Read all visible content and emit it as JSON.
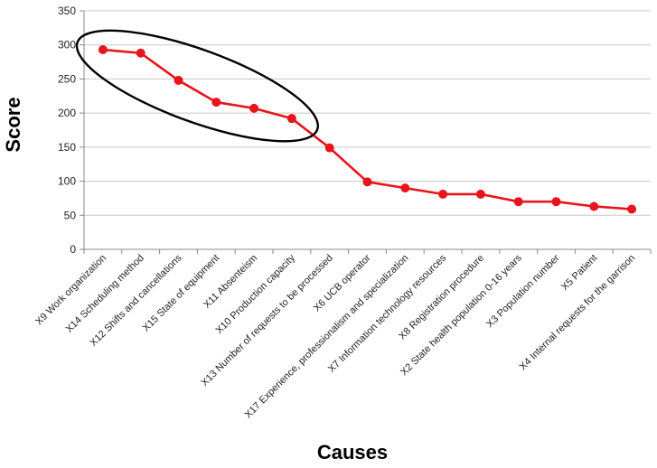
{
  "chart_data": {
    "type": "line",
    "title": "",
    "xlabel": "Causes",
    "ylabel": "Score",
    "ylim": [
      0,
      350
    ],
    "yticks": [
      0,
      50,
      100,
      150,
      200,
      250,
      300,
      350
    ],
    "grid": "horizontal",
    "categories": [
      "X9 Work organization",
      "X14 Scheduling method",
      "X12 Shifts and cancellations",
      "X15 State of equipment",
      "X11 Absenteism",
      "X10 Production capacity",
      "X13 Number of requests to be processed",
      "X6 UCB operator",
      "X17 Experience, professionalism and specialization",
      "X7 Information technology resources",
      "X8 Registration procedure",
      "X2 State health population 0-16 years",
      "X3 Population number",
      "X5 Patient",
      "X4 Internal requests for the garrison"
    ],
    "series": [
      {
        "name": "Score",
        "color": "#e8141b",
        "values": [
          293,
          288,
          248,
          216,
          207,
          192,
          149,
          99,
          90,
          81,
          81,
          70,
          70,
          63,
          59
        ]
      }
    ],
    "annotation": {
      "type": "ellipse",
      "description": "highlights top causes",
      "covers_categories": [
        0,
        5
      ]
    }
  }
}
